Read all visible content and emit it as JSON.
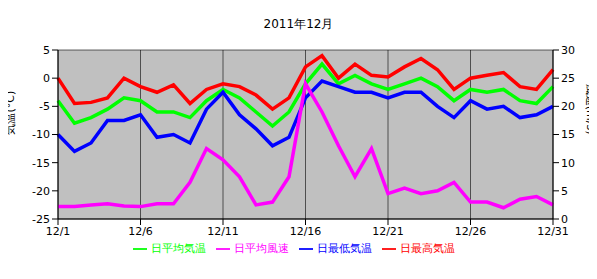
{
  "chart_data": {
    "type": "line",
    "title": "2011年12月",
    "categories": [
      "12/1",
      null,
      null,
      null,
      null,
      "12/6",
      null,
      null,
      null,
      null,
      "12/11",
      null,
      null,
      null,
      null,
      "12/16",
      null,
      null,
      null,
      null,
      "12/21",
      null,
      null,
      null,
      null,
      "12/26",
      null,
      null,
      null,
      null,
      "12/31"
    ],
    "y_label": "気温(°C)",
    "y2_label": "風速(m/s)",
    "ylim": [
      -25,
      5
    ],
    "yticks": [
      -25,
      -20,
      -15,
      -10,
      -5,
      0,
      5
    ],
    "y2lim": [
      0,
      30
    ],
    "y2ticks": [
      0,
      5,
      10,
      15,
      20,
      25,
      30
    ],
    "grid": true,
    "legend": "bottom",
    "series": [
      {
        "name": "日平均気温",
        "color": "#00ff00",
        "values": [
          -4,
          -8,
          -7,
          -5.5,
          -3.5,
          -4,
          -6,
          -6,
          -7,
          -4,
          -2,
          -3.5,
          -6,
          -8.5,
          -6,
          -1,
          2.5,
          -1,
          0.5,
          -1,
          -2,
          -1,
          0,
          -1.5,
          -4,
          -2,
          -2.5,
          -2,
          -4,
          -4.5,
          -1.5
        ]
      },
      {
        "name": "日最高気温",
        "color": "#ff0000",
        "values": [
          0,
          -4.5,
          -4.3,
          -3.5,
          0,
          -1.5,
          -2.5,
          -1.2,
          -4.5,
          -2,
          -1,
          -1.5,
          -3,
          -5.5,
          -3.5,
          2,
          4,
          0,
          2.5,
          0.5,
          0.2,
          2,
          3.5,
          1.5,
          -2,
          0,
          0.5,
          1,
          -1.5,
          -2,
          1.5
        ]
      },
      {
        "name": "日最低気温",
        "color": "#0000ff",
        "values": [
          -10,
          -13,
          -11.5,
          -7.5,
          -7.5,
          -6.5,
          -10.5,
          -10,
          -11.5,
          -5.5,
          -2.5,
          -6.5,
          -9,
          -12,
          -10.5,
          -3.5,
          -0.5,
          -1.5,
          -2.5,
          -2.5,
          -3.5,
          -2.5,
          -2.5,
          -5,
          -7,
          -4,
          -5.5,
          -5,
          -7,
          -6.5,
          -5
        ]
      },
      {
        "name": "日平均風速",
        "color": "#ff00ff",
        "axis": "y2",
        "values": [
          2.2,
          2.2,
          2.5,
          2.7,
          2.3,
          2.2,
          2.7,
          2.7,
          6.5,
          12.5,
          10.5,
          7.5,
          2.5,
          3,
          7.5,
          24,
          19,
          13,
          7.5,
          12.5,
          4.5,
          5.5,
          4.5,
          5,
          6.5,
          3,
          3,
          2,
          3.5,
          4,
          2.5
        ]
      }
    ]
  }
}
